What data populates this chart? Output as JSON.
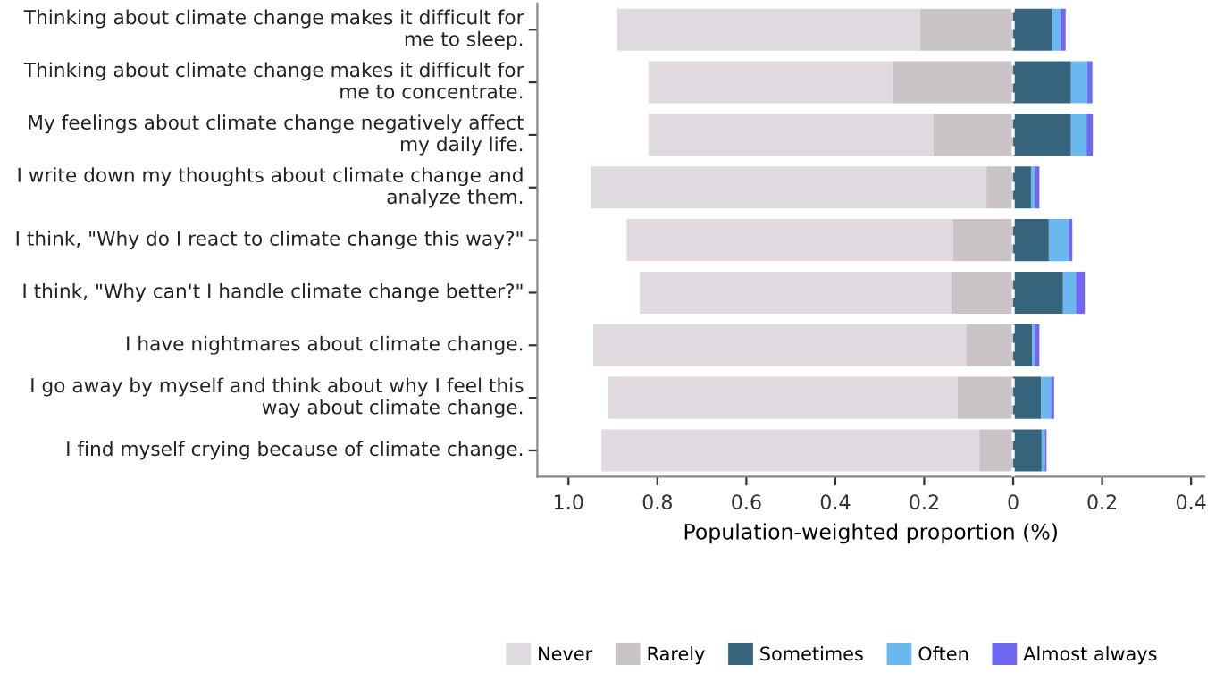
{
  "chart_data": {
    "type": "bar",
    "orientation": "horizontal",
    "stacked": true,
    "categories": [
      "Thinking about climate change makes it difficult for me to sleep.",
      "Thinking about climate change makes it difficult for me to concentrate.",
      "My feelings about climate change negatively affect my daily life.",
      "I write down my thoughts about climate change and analyze them.",
      "I think, \"Why do I react to climate change this way?\"",
      "I think, \"Why can't I handle climate change better?\"",
      "I have nightmares about climate change.",
      "I go away by myself and think about why I feel this way about climate change.",
      "I find myself crying because of climate change."
    ],
    "series": [
      {
        "name": "Rarely",
        "color": "#c9c3c7",
        "values": [
          -0.21,
          -0.27,
          -0.18,
          -0.06,
          -0.135,
          -0.14,
          -0.106,
          -0.126,
          -0.076
        ]
      },
      {
        "name": "Never",
        "color": "#e0d9df",
        "values": [
          -0.68,
          -0.55,
          -0.64,
          -0.89,
          -0.734,
          -0.7,
          -0.838,
          -0.786,
          -0.85
        ]
      },
      {
        "name": "Sometimes",
        "color": "#36647d",
        "values": [
          0.087,
          0.13,
          0.13,
          0.04,
          0.08,
          0.112,
          0.043,
          0.063,
          0.064
        ]
      },
      {
        "name": "Often",
        "color": "#6bb8f0",
        "values": [
          0.019,
          0.037,
          0.035,
          0.009,
          0.045,
          0.029,
          0.005,
          0.022,
          0.007
        ]
      },
      {
        "name": "Almost always",
        "color": "#7068f0",
        "values": [
          0.012,
          0.011,
          0.014,
          0.01,
          0.008,
          0.02,
          0.011,
          0.007,
          0.004
        ]
      }
    ],
    "xlabel": "Population-weighted proportion (%)",
    "xlim": [
      -1.07,
      0.43
    ],
    "xticks": [
      {
        "value": -1.0,
        "label": "1.0"
      },
      {
        "value": -0.8,
        "label": "0.8"
      },
      {
        "value": -0.6,
        "label": "0.6"
      },
      {
        "value": -0.4,
        "label": "0.4"
      },
      {
        "value": -0.2,
        "label": "0.2"
      },
      0,
      0.2,
      0.4
    ],
    "ref_lines": [
      {
        "axis": "x",
        "value": 0,
        "color": "#ffffff",
        "line_style": "dashed"
      }
    ],
    "grid": false,
    "legend": "bottom"
  }
}
